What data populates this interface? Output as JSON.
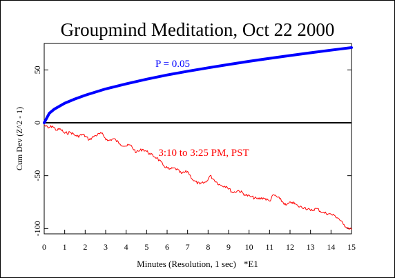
{
  "chart_data": {
    "type": "line",
    "title": "Groupmind Meditation, Oct 22 2000",
    "xlabel": "Minutes (Resolution, 1 sec)",
    "xlabel_suffix": "*E1",
    "ylabel": "Cum Dev (Z^2 - 1)",
    "xlim": [
      0,
      15
    ],
    "ylim": [
      -105,
      75
    ],
    "x_ticks": [
      "0",
      "1",
      "2",
      "3",
      "4",
      "5",
      "6",
      "7",
      "8",
      "9",
      "10",
      "11",
      "12",
      "13",
      "14",
      "15"
    ],
    "y_ticks": [
      -100,
      -50,
      0,
      50
    ],
    "y_tick_labels": [
      "-100",
      "-50",
      "0",
      "50"
    ],
    "zero_line": true,
    "grid": false,
    "colors": {
      "envelope": "#0000ff",
      "cumdev": "#ff0000",
      "axes": "#000000"
    },
    "series": [
      {
        "name": "P = 0.05",
        "kind": "probability-envelope",
        "x": [
          0,
          0.25,
          0.5,
          1,
          1.5,
          2,
          3,
          4,
          5,
          6,
          7,
          8,
          9,
          10,
          11,
          12,
          13,
          14,
          15
        ],
        "values": [
          0,
          9,
          13,
          18.5,
          22.5,
          26,
          32,
          36.8,
          41.2,
          45.2,
          48.7,
          52,
          55.1,
          58.1,
          60.9,
          63.6,
          66.2,
          68.7,
          71.1
        ]
      },
      {
        "name": "3:10 to 3:25 PM, PST",
        "kind": "cumulative-deviation",
        "x": [
          0,
          0.2,
          0.4,
          0.6,
          0.8,
          1.0,
          1.3,
          1.6,
          1.9,
          2.2,
          2.5,
          2.8,
          3.1,
          3.4,
          3.7,
          4.0,
          4.2,
          4.5,
          4.8,
          5.0,
          5.2,
          5.5,
          5.8,
          6.1,
          6.4,
          6.7,
          7.0,
          7.3,
          7.6,
          7.9,
          8.1,
          8.3,
          8.6,
          8.9,
          9.2,
          9.5,
          9.8,
          10.1,
          10.4,
          10.7,
          11.0,
          11.2,
          11.5,
          11.8,
          12.1,
          12.4,
          12.7,
          13.0,
          13.3,
          13.6,
          13.9,
          14.2,
          14.4,
          14.6,
          14.8,
          15.0
        ],
        "values": [
          -2,
          -5,
          -3,
          -7,
          -6,
          -10,
          -9,
          -13,
          -11,
          -16,
          -12,
          -10,
          -17,
          -15,
          -20,
          -22,
          -21,
          -28,
          -25,
          -27,
          -30,
          -33,
          -40,
          -44,
          -43,
          -48,
          -46,
          -55,
          -58,
          -56,
          -50,
          -54,
          -59,
          -60,
          -66,
          -64,
          -68,
          -70,
          -72,
          -71,
          -74,
          -68,
          -72,
          -78,
          -75,
          -79,
          -80,
          -83,
          -81,
          -85,
          -86,
          -88,
          -91,
          -96,
          -99,
          -101
        ]
      }
    ],
    "annotations": [
      {
        "text": "P = 0.05",
        "series": 0
      },
      {
        "text": "3:10 to 3:25 PM, PST",
        "series": 1
      }
    ]
  }
}
